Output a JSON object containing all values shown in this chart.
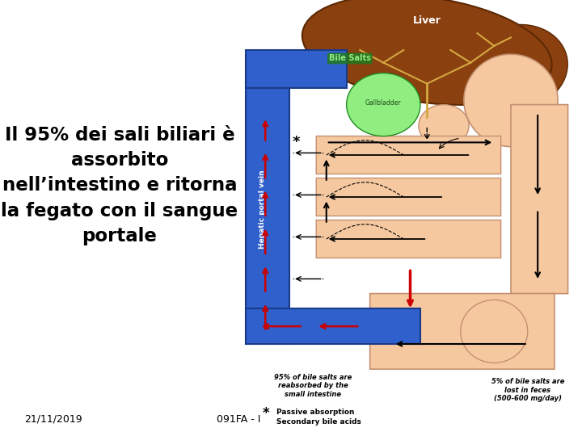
{
  "main_text_lines": [
    "Il 95% dei sali biliari è",
    "assorbito",
    "nell’intestino e ritorna",
    "la fegato con il sangue",
    "portale"
  ],
  "footer_left": "21/11/2019",
  "footer_center": "091FA - I",
  "bg_color": "#ffffff",
  "text_color": "#000000",
  "main_text_fontsize": 16.5,
  "footer_fontsize": 9,
  "liver_color": "#8B4010",
  "liver_edge": "#5C2800",
  "gallbladder_color": "#90EE80",
  "gallbladder_edge": "#228B22",
  "blue_color": "#3060CC",
  "blue_edge": "#1a3a8a",
  "body_color": "#F5C8A0",
  "body_edge": "#C49070",
  "red_color": "#CC0000",
  "black": "#000000",
  "white": "#ffffff",
  "bile_label_color": "#90EE80",
  "bile_box_color": "#207820"
}
